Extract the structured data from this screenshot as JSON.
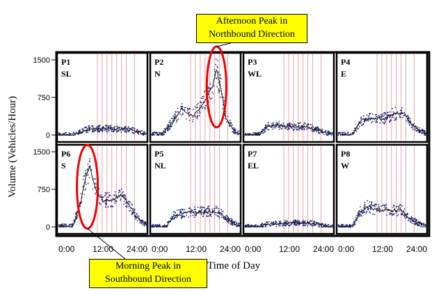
{
  "chart_data": {
    "type": "scatter",
    "ylabel": "Volume (Vehicles/Hour)",
    "xlabel": "Time of Day",
    "ylim": [
      0,
      1500
    ],
    "xlim": [
      0,
      24
    ],
    "y_ticks": [
      "1500",
      "750",
      "0"
    ],
    "x_ticks": [
      "0:00",
      "12:00",
      "24:00"
    ],
    "panels": [
      {
        "id": "P1",
        "dir": "SL",
        "row": 0,
        "col": 0,
        "profile": [
          [
            0,
            5
          ],
          [
            4,
            10
          ],
          [
            6,
            60
          ],
          [
            8,
            120
          ],
          [
            12,
            130
          ],
          [
            16,
            125
          ],
          [
            19,
            110
          ],
          [
            22,
            50
          ],
          [
            24,
            10
          ]
        ]
      },
      {
        "id": "P2",
        "dir": "N",
        "row": 0,
        "col": 1,
        "profile": [
          [
            0,
            15
          ],
          [
            3,
            25
          ],
          [
            6,
            300
          ],
          [
            8,
            520
          ],
          [
            11,
            380
          ],
          [
            13,
            520
          ],
          [
            15,
            780
          ],
          [
            16.5,
            1000
          ],
          [
            17.5,
            1300
          ],
          [
            18.5,
            1000
          ],
          [
            20,
            350
          ],
          [
            22,
            100
          ],
          [
            24,
            20
          ]
        ]
      },
      {
        "id": "P3",
        "dir": "WL",
        "row": 0,
        "col": 2,
        "profile": [
          [
            0,
            5
          ],
          [
            4,
            10
          ],
          [
            6,
            180
          ],
          [
            9,
            200
          ],
          [
            12,
            170
          ],
          [
            16,
            170
          ],
          [
            19,
            120
          ],
          [
            22,
            40
          ],
          [
            24,
            10
          ]
        ]
      },
      {
        "id": "P4",
        "dir": "E",
        "row": 0,
        "col": 3,
        "profile": [
          [
            0,
            10
          ],
          [
            4,
            20
          ],
          [
            6,
            280
          ],
          [
            9,
            330
          ],
          [
            13,
            340
          ],
          [
            16,
            450
          ],
          [
            18,
            400
          ],
          [
            20,
            200
          ],
          [
            22,
            90
          ],
          [
            24,
            20
          ]
        ]
      },
      {
        "id": "P6",
        "dir": "S",
        "row": 1,
        "col": 0,
        "profile": [
          [
            0,
            10
          ],
          [
            4,
            30
          ],
          [
            6,
            500
          ],
          [
            7.5,
            1050
          ],
          [
            8.5,
            1200
          ],
          [
            10,
            750
          ],
          [
            12,
            520
          ],
          [
            15,
            550
          ],
          [
            17,
            650
          ],
          [
            19,
            450
          ],
          [
            21,
            200
          ],
          [
            24,
            20
          ]
        ]
      },
      {
        "id": "P5",
        "dir": "NL",
        "row": 1,
        "col": 1,
        "profile": [
          [
            0,
            5
          ],
          [
            4,
            10
          ],
          [
            6,
            230
          ],
          [
            9,
            280
          ],
          [
            13,
            300
          ],
          [
            17,
            320
          ],
          [
            19,
            250
          ],
          [
            21,
            120
          ],
          [
            24,
            10
          ]
        ]
      },
      {
        "id": "P7",
        "dir": "EL",
        "row": 1,
        "col": 2,
        "profile": [
          [
            0,
            5
          ],
          [
            4,
            10
          ],
          [
            6,
            60
          ],
          [
            10,
            70
          ],
          [
            14,
            80
          ],
          [
            18,
            70
          ],
          [
            21,
            30
          ],
          [
            24,
            5
          ]
        ]
      },
      {
        "id": "P8",
        "dir": "W",
        "row": 1,
        "col": 3,
        "profile": [
          [
            0,
            5
          ],
          [
            4,
            15
          ],
          [
            6,
            300
          ],
          [
            8,
            420
          ],
          [
            10,
            340
          ],
          [
            14,
            330
          ],
          [
            17,
            340
          ],
          [
            19,
            180
          ],
          [
            22,
            60
          ],
          [
            24,
            10
          ]
        ]
      }
    ],
    "annotations": [
      {
        "target": "P2",
        "text": [
          "Afternoon Peak in",
          "Northbound Direction"
        ],
        "time": 17.5
      },
      {
        "target": "P6",
        "text": [
          "Morning Peak in",
          "Southbound Direction"
        ],
        "time": 7.8
      }
    ]
  },
  "colors": {
    "points": "#1a237e",
    "line": "#111111",
    "vlines": "#e58a8a",
    "ellipse": "#ee0000",
    "callout": "#ffff00"
  }
}
